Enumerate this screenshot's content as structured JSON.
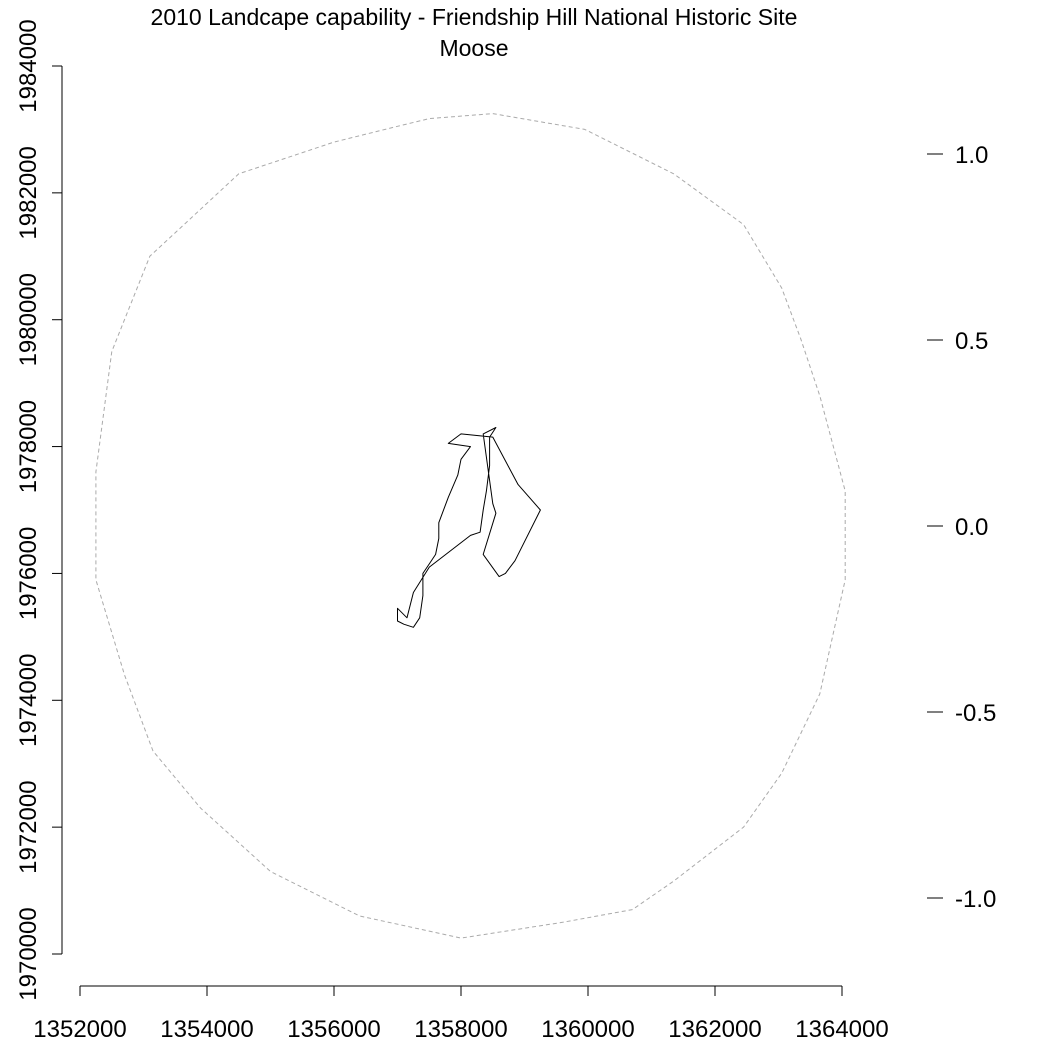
{
  "chart_data": {
    "type": "map",
    "title": "2010 Landcape capability - Friendship Hill National Historic Site",
    "subtitle": "Moose",
    "xlabel": "",
    "ylabel": "",
    "x_ticks": [
      1352000,
      1354000,
      1356000,
      1358000,
      1360000,
      1362000,
      1364000
    ],
    "y_ticks": [
      1970000,
      1972000,
      1974000,
      1976000,
      1978000,
      1980000,
      1982000,
      1984000
    ],
    "xlim": [
      1352000,
      1364000
    ],
    "ylim": [
      1970000,
      1984000
    ],
    "legend_ticks": [
      "1.0",
      "0.5",
      "0.0",
      "-0.5",
      "-1.0"
    ],
    "legend_values": [
      1.0,
      0.5,
      0.0,
      -0.5,
      -1.0
    ],
    "legend_range": [
      -1.2,
      1.2
    ],
    "grid": false,
    "colors": {
      "buffer": "#aaaaaa",
      "boundary": "#000000",
      "axis": "#000000"
    },
    "series": [
      {
        "style": "dashed",
        "x": [
          1358500,
          1359950,
          1361350,
          1362450,
          1363050,
          1363350,
          1363650,
          1364050,
          1364050,
          1363650,
          1363050,
          1362450,
          1361350,
          1360700,
          1359600,
          1358000,
          1356400,
          1355000,
          1353900,
          1353150,
          1352700,
          1352250,
          1352250,
          1352500,
          1353100,
          1354500,
          1356000,
          1357000,
          1357500
        ],
        "y": [
          1983250,
          1983000,
          1982300,
          1981500,
          1980500,
          1979700,
          1978800,
          1977300,
          1975900,
          1974100,
          1972850,
          1972000,
          1971150,
          1970700,
          1970500,
          1970250,
          1970600,
          1971300,
          1972300,
          1973200,
          1974400,
          1975900,
          1977600,
          1979500,
          1981000,
          1982300,
          1982800,
          1983050,
          1983170
        ]
      },
      {
        "style": "solid",
        "x": [
          1358350,
          1358550,
          1358450,
          1358450,
          1358400,
          1358350,
          1358300,
          1358150,
          1357500,
          1357250,
          1357150,
          1357000,
          1357000,
          1357100,
          1357250,
          1357350,
          1357400,
          1357400,
          1357500,
          1357600,
          1357650,
          1357650,
          1357800,
          1357950,
          1358000,
          1358150,
          1357800,
          1358000,
          1358500,
          1358900,
          1359250,
          1358850,
          1358700,
          1358600,
          1358350,
          1358550,
          1358500,
          1358350
        ],
        "y": [
          1978200,
          1978300,
          1978150,
          1977700,
          1977300,
          1977000,
          1976650,
          1976600,
          1976100,
          1975700,
          1975300,
          1975450,
          1975250,
          1975200,
          1975150,
          1975300,
          1975650,
          1976000,
          1976150,
          1976300,
          1976550,
          1976800,
          1977200,
          1977550,
          1977800,
          1978000,
          1978050,
          1978200,
          1978150,
          1977400,
          1977000,
          1976200,
          1976000,
          1975950,
          1976300,
          1976950,
          1977100,
          1978200
        ]
      }
    ]
  }
}
